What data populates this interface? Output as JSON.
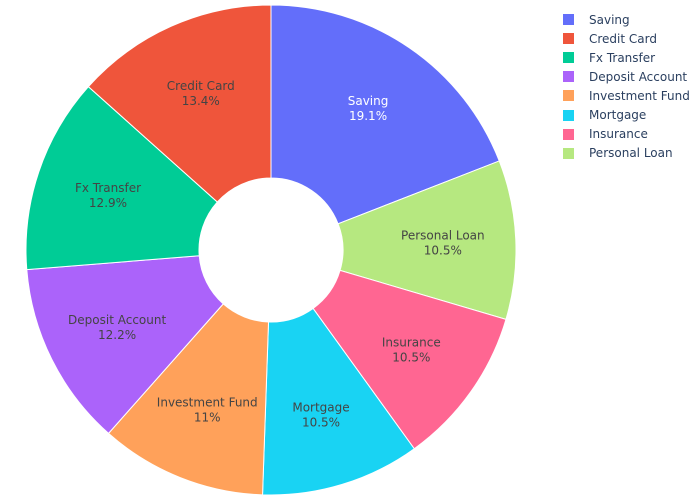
{
  "chart_data": {
    "type": "pie",
    "hole": true,
    "labels": [
      "Saving",
      "Personal Loan",
      "Insurance",
      "Mortgage",
      "Investment Fund",
      "Deposit Account",
      "Fx Transfer",
      "Credit Card"
    ],
    "values": [
      19.1,
      10.5,
      10.5,
      10.5,
      11,
      12.2,
      12.9,
      13.4
    ],
    "display_percent": [
      "19.1%",
      "10.5%",
      "10.5%",
      "10.5%",
      "11%",
      "12.2%",
      "12.9%",
      "13.4%"
    ],
    "colors": [
      "#636efa",
      "#b6e880",
      "#ff6692",
      "#19d3f3",
      "#ffa15a",
      "#ab63fa",
      "#00cc96",
      "#ef553b"
    ],
    "label_colors": [
      "#ffffff",
      "#444444",
      "#444444",
      "#444444",
      "#444444",
      "#444444",
      "#444444",
      "#444444"
    ],
    "legend_position": "top-right",
    "legend": [
      {
        "label": "Saving",
        "color": "#636efa"
      },
      {
        "label": "Credit Card",
        "color": "#ef553b"
      },
      {
        "label": "Fx Transfer",
        "color": "#00cc96"
      },
      {
        "label": "Deposit Account",
        "color": "#ab63fa"
      },
      {
        "label": "Investment Fund",
        "color": "#ffa15a"
      },
      {
        "label": "Mortgage",
        "color": "#19d3f3"
      },
      {
        "label": "Insurance",
        "color": "#ff6692"
      },
      {
        "label": "Personal Loan",
        "color": "#b6e880"
      }
    ]
  }
}
